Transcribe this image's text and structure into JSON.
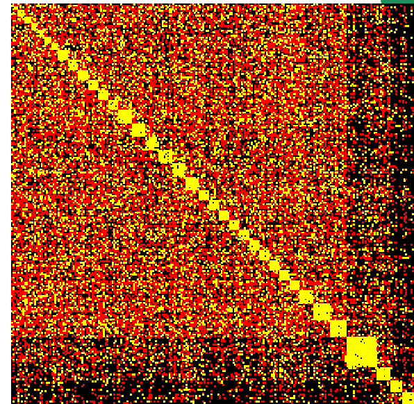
{
  "chart_data": {
    "type": "heatmap",
    "title": "",
    "xlabel": "",
    "ylabel": "",
    "rows": 240,
    "cols": 240,
    "colormap": [
      "#000000",
      "#ff0000",
      "#ffff00"
    ],
    "grid": false,
    "legend": "none",
    "diagonal_blocks": [
      [
        0,
        2
      ],
      [
        2,
        4
      ],
      [
        4,
        8
      ],
      [
        8,
        12
      ],
      [
        12,
        16
      ],
      [
        16,
        20
      ],
      [
        20,
        24
      ],
      [
        24,
        28
      ],
      [
        28,
        34
      ],
      [
        34,
        40
      ],
      [
        40,
        46
      ],
      [
        46,
        52
      ],
      [
        52,
        58
      ],
      [
        58,
        64
      ],
      [
        64,
        72
      ],
      [
        72,
        80
      ],
      [
        80,
        88
      ],
      [
        88,
        96
      ],
      [
        96,
        104
      ],
      [
        104,
        112
      ],
      [
        112,
        118
      ],
      [
        118,
        124
      ],
      [
        124,
        130
      ],
      [
        130,
        136
      ],
      [
        136,
        142
      ],
      [
        142,
        148
      ],
      [
        148,
        154
      ],
      [
        154,
        160
      ],
      [
        160,
        166
      ],
      [
        166,
        172
      ],
      [
        172,
        180
      ],
      [
        180,
        190
      ],
      [
        190,
        200
      ],
      [
        200,
        218
      ],
      [
        218,
        226
      ],
      [
        226,
        233
      ],
      [
        233,
        240
      ]
    ],
    "region_boundaries": [
      200,
      226
    ],
    "region_density": {
      "top_left": 0.55,
      "lower_band": 0.3,
      "right_band": 0.12,
      "bottom_right": 0.35
    }
  },
  "ui": {
    "accent_color": "#1f8f5f"
  }
}
